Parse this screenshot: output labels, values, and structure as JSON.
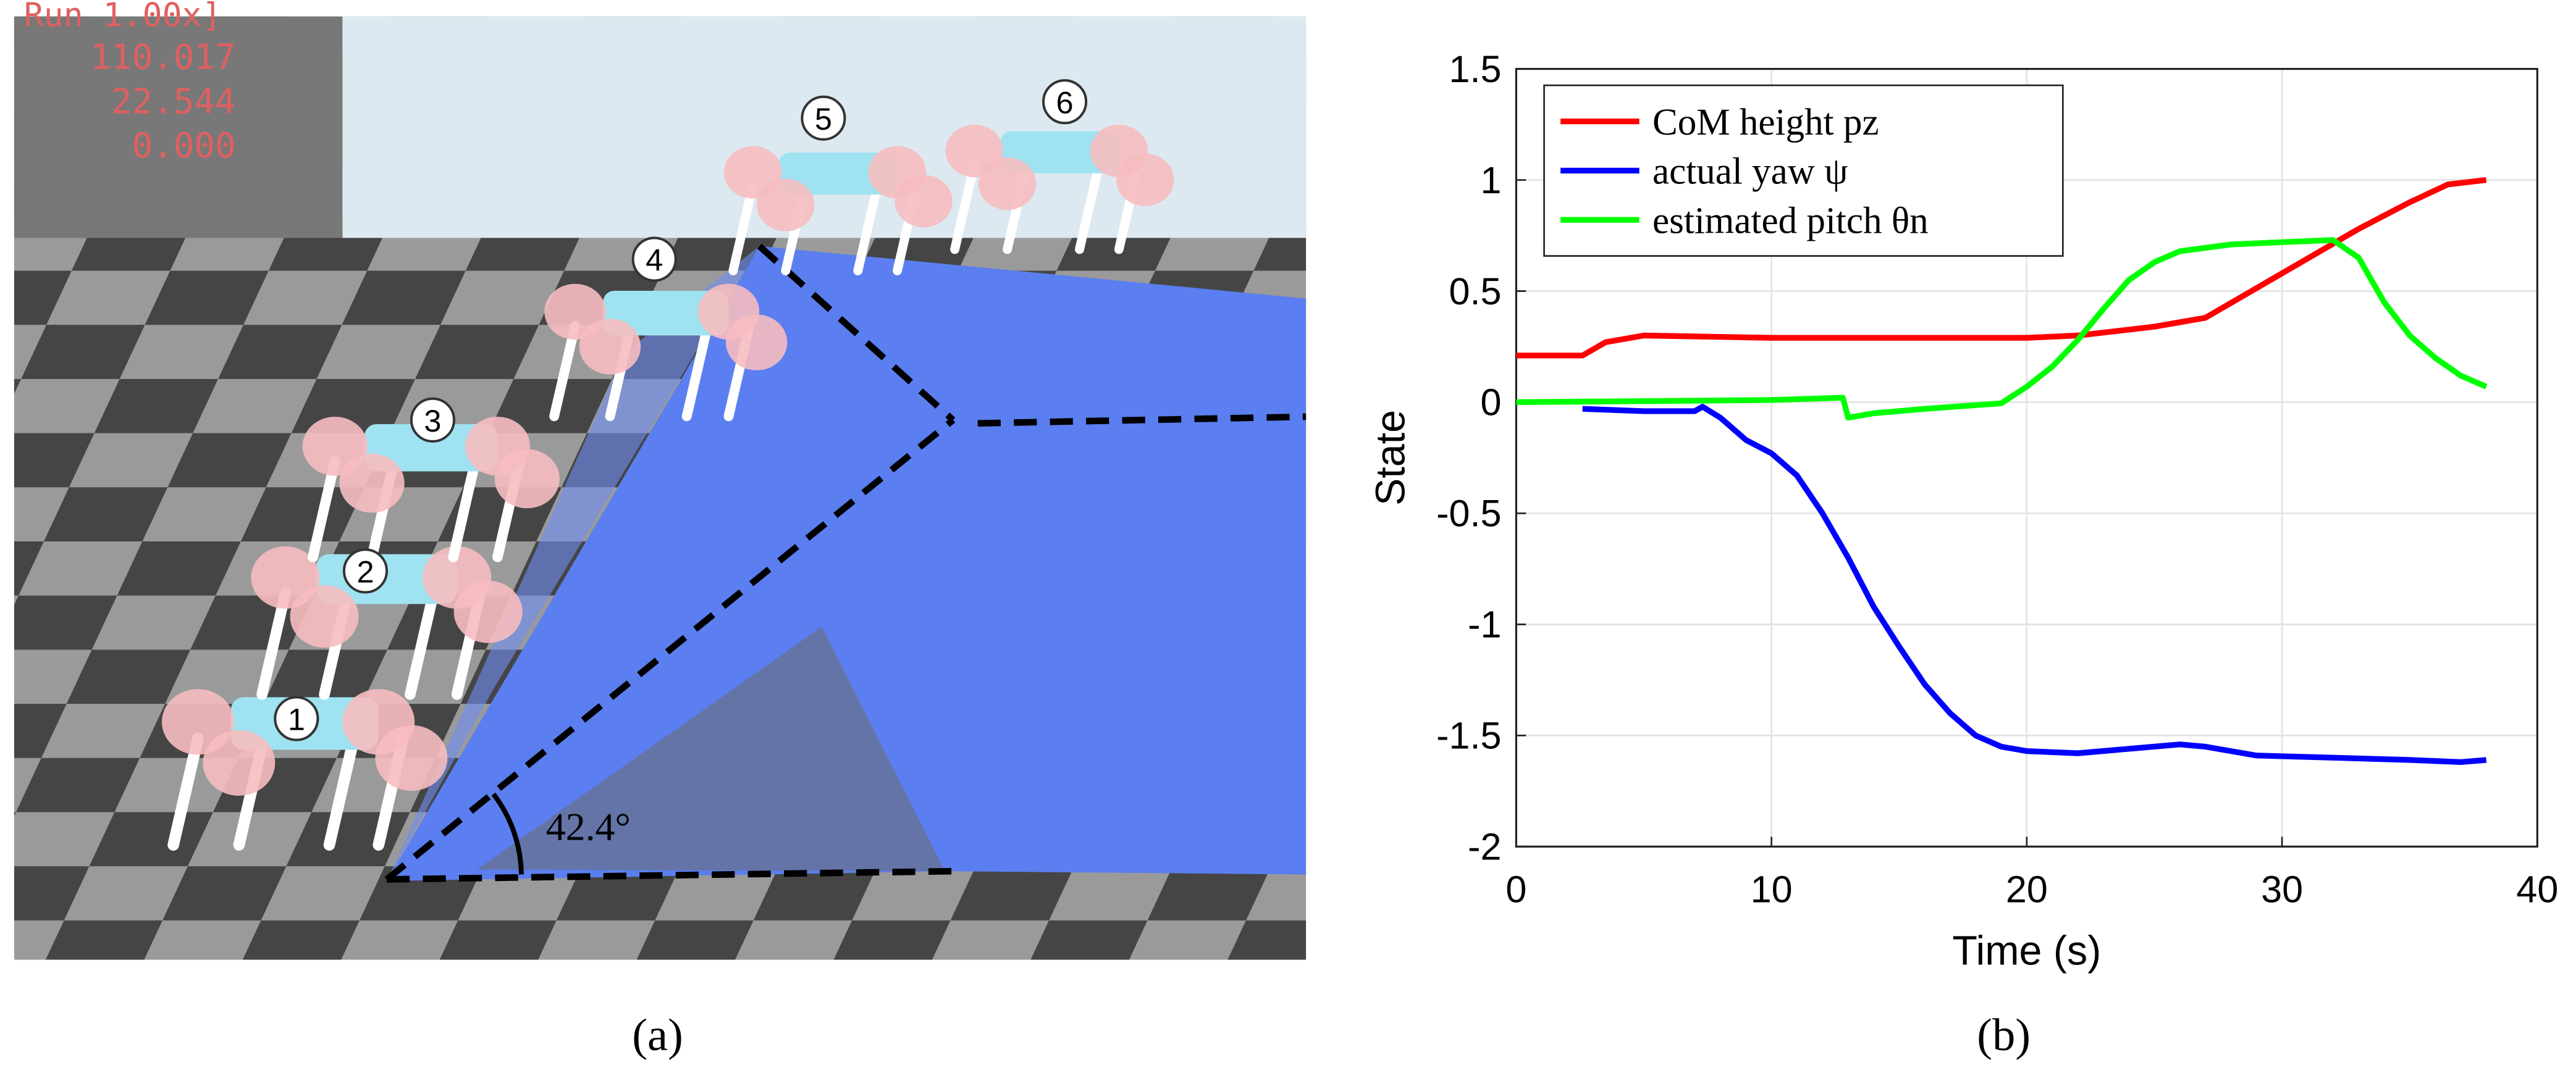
{
  "figure": {
    "panel_labels": [
      "(a)",
      "(b)"
    ],
    "simulation": {
      "overlay_text": [
        "Run  1.00x]",
        "110.017",
        "22.544",
        "0.000"
      ],
      "robot_labels": [
        "1",
        "2",
        "3",
        "4",
        "5",
        "6"
      ],
      "angle_label": "42.4°"
    }
  },
  "chart_data": {
    "type": "line",
    "xlabel": "Time (s)",
    "ylabel": "State",
    "xlim": [
      0,
      40
    ],
    "xticks": [
      0,
      10,
      20,
      30,
      40
    ],
    "ylim": [
      -2,
      1.5
    ],
    "yticks": [
      -2,
      -1.5,
      -1,
      -0.5,
      0,
      0.5,
      1,
      1.5
    ],
    "grid": true,
    "legend": "upper left",
    "series": [
      {
        "name": "CoM height pz",
        "color": "#ff0000",
        "x": [
          0,
          2.6,
          3.5,
          5,
          10,
          15,
          20,
          22,
          25,
          27,
          30,
          33,
          35,
          36.5,
          38
        ],
        "values": [
          0.21,
          0.21,
          0.27,
          0.3,
          0.29,
          0.29,
          0.29,
          0.3,
          0.34,
          0.38,
          0.58,
          0.78,
          0.9,
          0.98,
          1.0
        ]
      },
      {
        "name": "actual yaw ψ",
        "color": "#0000ff",
        "x": [
          2.6,
          5,
          7,
          7.3,
          8,
          9,
          10,
          11,
          12,
          13,
          14,
          15,
          16,
          17,
          18,
          19,
          20,
          22,
          24,
          26,
          27,
          29,
          32,
          35,
          37,
          38
        ],
        "values": [
          -0.03,
          -0.04,
          -0.04,
          -0.02,
          -0.07,
          -0.17,
          -0.23,
          -0.33,
          -0.5,
          -0.7,
          -0.92,
          -1.1,
          -1.27,
          -1.4,
          -1.5,
          -1.55,
          -1.57,
          -1.58,
          -1.56,
          -1.54,
          -1.55,
          -1.59,
          -1.6,
          -1.61,
          -1.62,
          -1.61
        ]
      },
      {
        "name": "estimated pitch θn",
        "color": "#00ff00",
        "x": [
          0,
          5,
          10,
          12.8,
          13,
          14,
          16,
          19,
          20,
          21,
          22,
          23,
          24,
          25,
          26,
          28,
          30,
          32,
          33,
          34,
          35,
          36,
          37,
          38
        ],
        "values": [
          0,
          0.005,
          0.01,
          0.02,
          -0.07,
          -0.05,
          -0.03,
          -0.005,
          0.07,
          0.16,
          0.28,
          0.42,
          0.55,
          0.63,
          0.68,
          0.71,
          0.72,
          0.73,
          0.65,
          0.45,
          0.3,
          0.2,
          0.12,
          0.07
        ]
      }
    ]
  }
}
